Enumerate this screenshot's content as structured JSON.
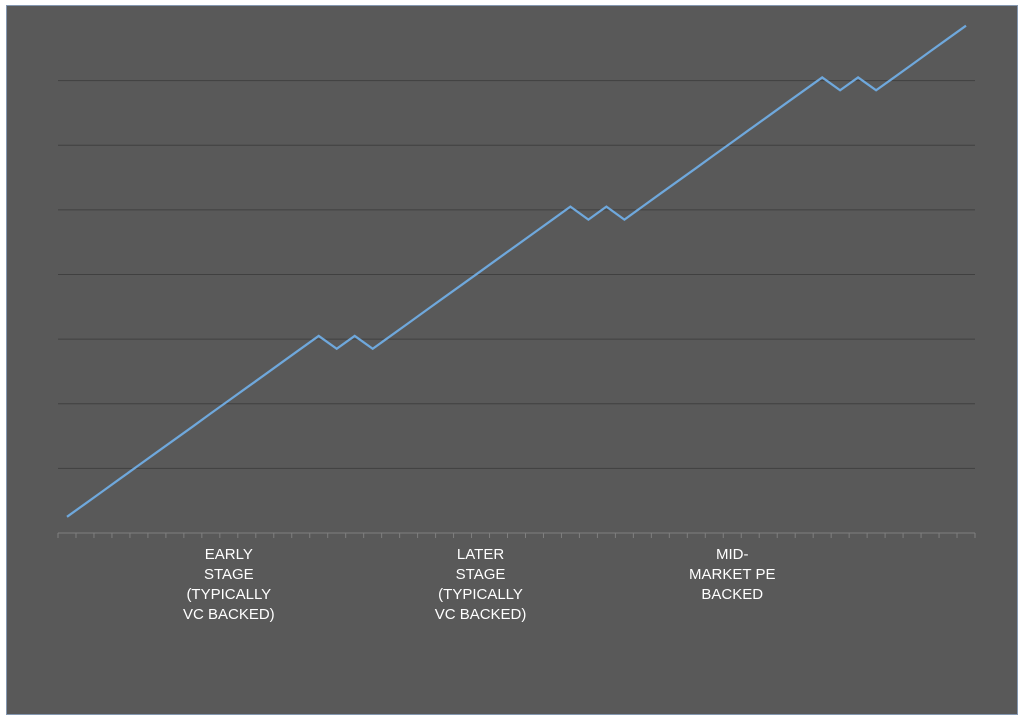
{
  "chart_data": {
    "type": "line",
    "title": "",
    "xlabel": "",
    "ylabel": "",
    "x": [
      0,
      1,
      2,
      3,
      4,
      5,
      6,
      7,
      8,
      9,
      10,
      11,
      12,
      13,
      14,
      15,
      16,
      17,
      18,
      19,
      20,
      21,
      22,
      23,
      24,
      25,
      26,
      27,
      28,
      29,
      30,
      31,
      32,
      33,
      34,
      35,
      36,
      37,
      38,
      39,
      40,
      41,
      42,
      43,
      44,
      45,
      46,
      47,
      48,
      49,
      50
    ],
    "series": [
      {
        "values": [
          0.5,
          0.9,
          1.3,
          1.7,
          2.1,
          2.5,
          2.9,
          3.3,
          3.7,
          4.1,
          4.5,
          4.9,
          5.3,
          5.7,
          6.1,
          5.7,
          6.1,
          5.7,
          6.1,
          6.5,
          6.9,
          7.3,
          7.7,
          8.1,
          8.5,
          8.9,
          9.3,
          9.7,
          10.1,
          9.7,
          10.1,
          9.7,
          10.1,
          10.5,
          10.9,
          11.3,
          11.7,
          12.1,
          12.5,
          12.9,
          13.3,
          13.7,
          14.1,
          13.7,
          14.1,
          13.7,
          14.1,
          14.5,
          14.9,
          15.3,
          15.7
        ],
        "color": "#6fa8dc"
      }
    ],
    "xlim": [
      -0.5,
      50.5
    ],
    "ylim": [
      0,
      16
    ],
    "y_gridlines": [
      2,
      4,
      6,
      8,
      10,
      12,
      14
    ],
    "grid": true,
    "legend": "none",
    "category_labels": [
      {
        "at": 9,
        "lines": [
          "EARLY",
          "STAGE",
          "(TYPICALLY",
          "VC BACKED)"
        ]
      },
      {
        "at": 23,
        "lines": [
          "LATER",
          "STAGE",
          "(TYPICALLY",
          "VC BACKED)"
        ]
      },
      {
        "at": 37,
        "lines": [
          "MID-",
          "MARKET PE",
          "BACKED"
        ]
      }
    ],
    "colors": {
      "background": "#595959",
      "gridline": "#404040",
      "axis": "#7f7f7f",
      "text": "#ffffff",
      "frame_border": "#8497b0"
    }
  }
}
